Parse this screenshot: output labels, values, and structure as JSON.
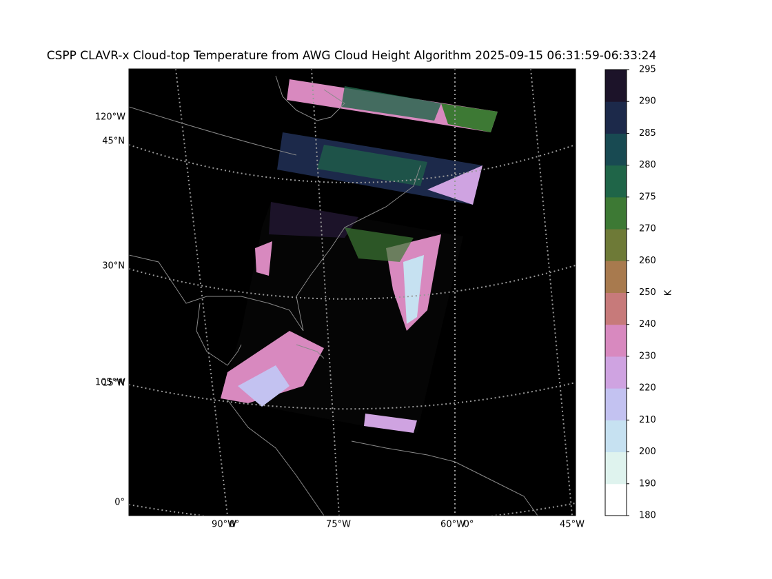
{
  "title": "CSPP CLAVR-x Cloud-top Temperature from AWG Cloud Height Algorithm 2025-09-15 06:31:59-06:33:24",
  "map": {
    "left_labels": [
      "120°W",
      "45°N",
      "30°N",
      "105°W",
      "15°N",
      "0°"
    ],
    "bottom_labels": [
      "90°W",
      "0°",
      "75°W",
      "60°W",
      "0°",
      "45°W"
    ]
  },
  "colorbar": {
    "label": "K",
    "ticks": [
      180,
      190,
      200,
      210,
      220,
      230,
      240,
      250,
      260,
      270,
      275,
      280,
      285,
      290,
      295
    ],
    "colors": [
      "#ffffff",
      "#dff3ee",
      "#c6e1f1",
      "#c3c2f1",
      "#cfa3e1",
      "#d889bf",
      "#c77a7a",
      "#a87a4e",
      "#6e7a37",
      "#3d7934",
      "#1f6548",
      "#184a52",
      "#1c294a",
      "#1c1329"
    ]
  }
}
